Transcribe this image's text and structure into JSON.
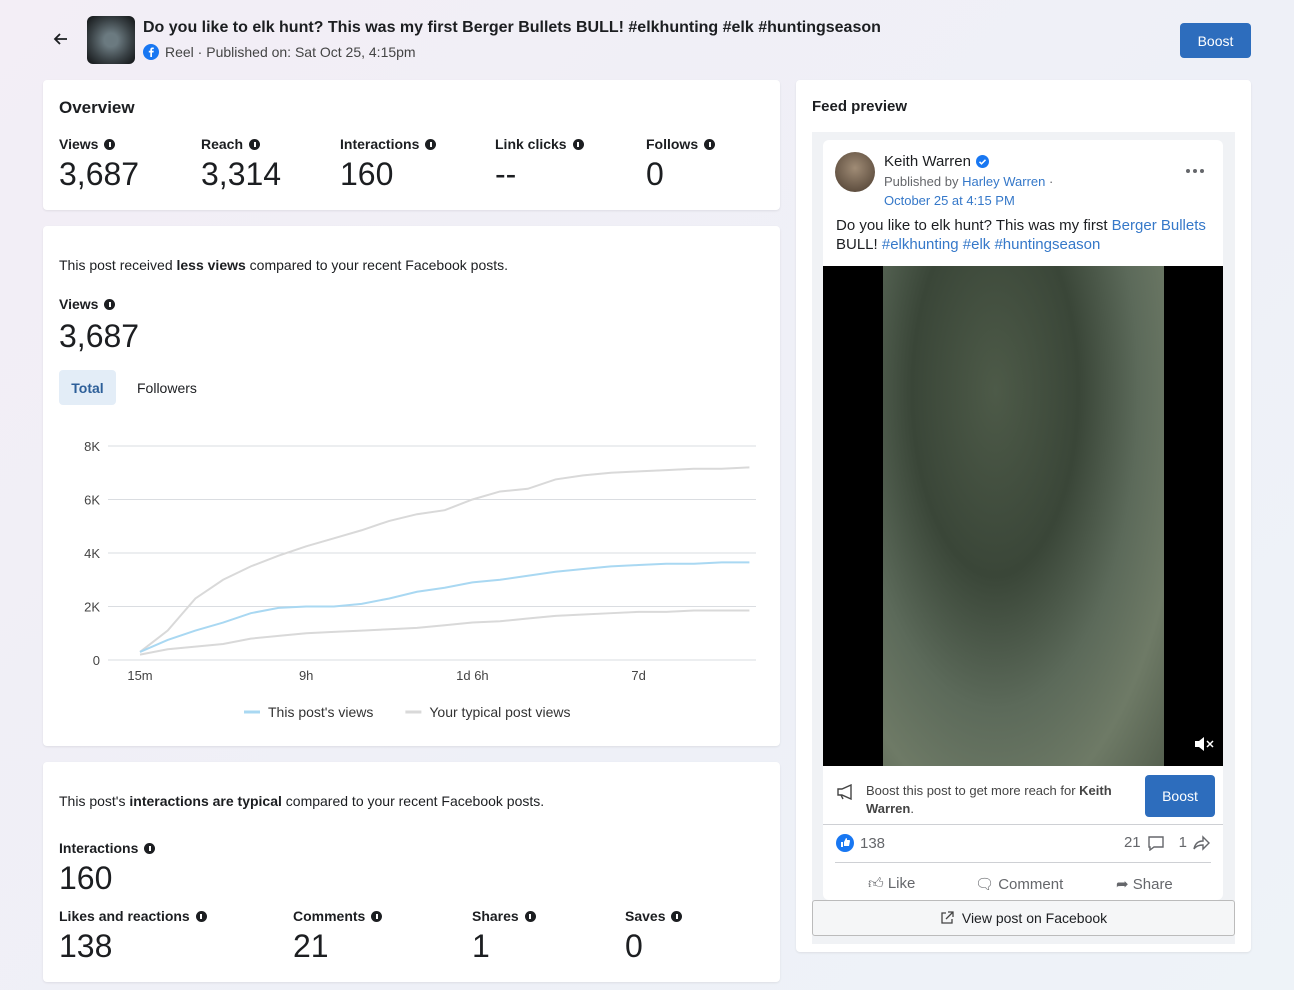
{
  "header": {
    "title": "Do you like to elk hunt? This was my first Berger Bullets BULL! #elkhunting #elk #huntingseason",
    "subtitle": "Reel · Published on: Sat Oct 25, 4:15pm",
    "button": "Boost"
  },
  "overview": {
    "title": "Overview",
    "metrics": [
      {
        "label": "Views",
        "value": "3,687"
      },
      {
        "label": "Reach",
        "value": "3,314"
      },
      {
        "label": "Interactions",
        "value": "160"
      },
      {
        "label": "Link clicks",
        "value": "--"
      },
      {
        "label": "Follows",
        "value": "0"
      }
    ]
  },
  "views_card": {
    "summary": [
      "This post received ",
      "less views",
      " compared to your recent Facebook posts."
    ],
    "metric_label": "Views",
    "metric_value": "3,687",
    "tabs": [
      "Total",
      "Followers"
    ]
  },
  "chart_data": {
    "type": "line",
    "categories": [
      "15m",
      null,
      null,
      null,
      null,
      null,
      "9h",
      null,
      null,
      null,
      null,
      null,
      "1d 6h",
      null,
      null,
      null,
      null,
      null,
      "7d",
      null,
      null,
      null,
      null
    ],
    "series": [
      {
        "name": "This post's views",
        "color": "#a9d8f2",
        "values": [
          300,
          750,
          1100,
          1400,
          1750,
          1950,
          2000,
          2000,
          2100,
          2300,
          2550,
          2700,
          2900,
          3000,
          3150,
          3300,
          3400,
          3500,
          3550,
          3600,
          3600,
          3650,
          3650
        ]
      },
      {
        "name": "Your typical post views",
        "color": "#d9d9d9",
        "values": [
          300,
          1100,
          2300,
          3000,
          3500,
          3900,
          4250,
          4550,
          4850,
          5200,
          5450,
          5600,
          6000,
          6300,
          6400,
          6750,
          6900,
          7000,
          7050,
          7100,
          7150,
          7150,
          7200
        ],
        "lower": [
          200,
          400,
          500,
          600,
          800,
          900,
          1000,
          1050,
          1100,
          1150,
          1200,
          1300,
          1400,
          1450,
          1550,
          1650,
          1700,
          1750,
          1800,
          1800,
          1850,
          1850,
          1850
        ]
      }
    ],
    "ylim": [
      0,
      8000
    ],
    "yticks": [
      0,
      {
        "value": 2000,
        "label": "2K"
      },
      {
        "value": 4000,
        "label": "4K"
      },
      {
        "value": 6000,
        "label": "6K"
      },
      {
        "value": 8000,
        "label": "8K"
      }
    ],
    "grid": true,
    "legend": "bottom"
  },
  "interactions_card": {
    "summary": [
      "This post's ",
      "interactions are typical",
      " compared to your recent Facebook posts."
    ],
    "metric_label": "Interactions",
    "metric_value": "160",
    "metrics": [
      {
        "label": "Likes and reactions",
        "value": "138"
      },
      {
        "label": "Comments",
        "value": "21"
      },
      {
        "label": "Shares",
        "value": "1"
      },
      {
        "label": "Saves",
        "value": "0"
      }
    ]
  },
  "feed_preview": {
    "title": "Feed preview",
    "author": "Keith Warren",
    "published_by": "Published by",
    "publisher": "Harley Warren",
    "dot": "·",
    "date": "October 25 at 4:15 PM",
    "text": [
      "Do you like to elk hunt? This was my first ",
      "Berger Bullets",
      " BULL! ",
      "#elkhunting #elk #huntingseason"
    ],
    "boost_text": [
      "Boost this post to get more reach for ",
      "Keith Warren",
      "."
    ],
    "boost_button": "Boost",
    "reactions": "138",
    "comments": "21",
    "shares": "1",
    "actions": [
      "Like",
      "Comment",
      "Share"
    ],
    "view_link": "View post on Facebook"
  }
}
